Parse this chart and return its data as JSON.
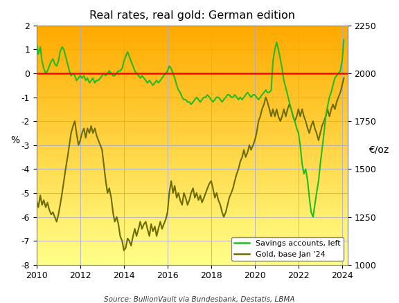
{
  "title": "Real rates, real gold: German edition",
  "source": "Source: BullionVault via Bundesbank, Destatis, LBMA",
  "ylabel_left": "%",
  "ylabel_right": "€/oz",
  "xlim": [
    2010.0,
    2024.25
  ],
  "ylim_left": [
    -8,
    2
  ],
  "ylim_right": [
    1000,
    2250
  ],
  "yticks_left": [
    -8,
    -7,
    -6,
    -5,
    -4,
    -3,
    -2,
    -1,
    0,
    1,
    2
  ],
  "yticks_right": [
    1000,
    1250,
    1500,
    1750,
    2000,
    2250
  ],
  "xticks": [
    2010,
    2012,
    2014,
    2016,
    2018,
    2020,
    2022,
    2024
  ],
  "color_savings": "#22bb22",
  "color_gold": "#6b6b00",
  "color_zero_line": "#ff0000",
  "background_top_color": "#ffaa00",
  "background_bottom_color": "#ffff88",
  "grid_color": "#aaaacc",
  "savings_data": [
    [
      2010.0,
      1.3
    ],
    [
      2010.08,
      0.8
    ],
    [
      2010.17,
      1.1
    ],
    [
      2010.25,
      0.5
    ],
    [
      2010.33,
      0.2
    ],
    [
      2010.42,
      0.0
    ],
    [
      2010.5,
      0.1
    ],
    [
      2010.58,
      0.3
    ],
    [
      2010.67,
      0.5
    ],
    [
      2010.75,
      0.6
    ],
    [
      2010.83,
      0.4
    ],
    [
      2010.92,
      0.3
    ],
    [
      2011.0,
      0.5
    ],
    [
      2011.08,
      0.9
    ],
    [
      2011.17,
      1.1
    ],
    [
      2011.25,
      1.0
    ],
    [
      2011.33,
      0.7
    ],
    [
      2011.42,
      0.4
    ],
    [
      2011.5,
      0.1
    ],
    [
      2011.58,
      -0.1
    ],
    [
      2011.67,
      0.0
    ],
    [
      2011.75,
      -0.1
    ],
    [
      2011.83,
      -0.3
    ],
    [
      2011.92,
      -0.2
    ],
    [
      2012.0,
      -0.1
    ],
    [
      2012.08,
      -0.2
    ],
    [
      2012.17,
      -0.1
    ],
    [
      2012.25,
      -0.3
    ],
    [
      2012.33,
      -0.2
    ],
    [
      2012.42,
      -0.4
    ],
    [
      2012.5,
      -0.3
    ],
    [
      2012.58,
      -0.2
    ],
    [
      2012.67,
      -0.4
    ],
    [
      2012.75,
      -0.3
    ],
    [
      2012.83,
      -0.3
    ],
    [
      2012.92,
      -0.2
    ],
    [
      2013.0,
      -0.1
    ],
    [
      2013.08,
      0.0
    ],
    [
      2013.17,
      -0.1
    ],
    [
      2013.25,
      0.0
    ],
    [
      2013.33,
      0.1
    ],
    [
      2013.42,
      0.0
    ],
    [
      2013.5,
      -0.1
    ],
    [
      2013.58,
      -0.1
    ],
    [
      2013.67,
      0.0
    ],
    [
      2013.75,
      0.1
    ],
    [
      2013.83,
      0.1
    ],
    [
      2013.92,
      0.2
    ],
    [
      2014.0,
      0.5
    ],
    [
      2014.08,
      0.7
    ],
    [
      2014.17,
      0.9
    ],
    [
      2014.25,
      0.7
    ],
    [
      2014.33,
      0.5
    ],
    [
      2014.42,
      0.3
    ],
    [
      2014.5,
      0.1
    ],
    [
      2014.58,
      0.0
    ],
    [
      2014.67,
      -0.1
    ],
    [
      2014.75,
      -0.2
    ],
    [
      2014.83,
      -0.1
    ],
    [
      2014.92,
      -0.2
    ],
    [
      2015.0,
      -0.3
    ],
    [
      2015.08,
      -0.4
    ],
    [
      2015.17,
      -0.3
    ],
    [
      2015.25,
      -0.4
    ],
    [
      2015.33,
      -0.5
    ],
    [
      2015.42,
      -0.4
    ],
    [
      2015.5,
      -0.3
    ],
    [
      2015.58,
      -0.4
    ],
    [
      2015.67,
      -0.3
    ],
    [
      2015.75,
      -0.2
    ],
    [
      2015.83,
      -0.1
    ],
    [
      2015.92,
      0.0
    ],
    [
      2016.0,
      0.1
    ],
    [
      2016.08,
      0.3
    ],
    [
      2016.17,
      0.2
    ],
    [
      2016.25,
      0.0
    ],
    [
      2016.33,
      -0.2
    ],
    [
      2016.42,
      -0.5
    ],
    [
      2016.5,
      -0.7
    ],
    [
      2016.58,
      -0.8
    ],
    [
      2016.67,
      -1.0
    ],
    [
      2016.75,
      -1.1
    ],
    [
      2016.83,
      -1.1
    ],
    [
      2016.92,
      -1.2
    ],
    [
      2017.0,
      -1.2
    ],
    [
      2017.08,
      -1.3
    ],
    [
      2017.17,
      -1.2
    ],
    [
      2017.25,
      -1.1
    ],
    [
      2017.33,
      -1.0
    ],
    [
      2017.42,
      -1.1
    ],
    [
      2017.5,
      -1.2
    ],
    [
      2017.58,
      -1.1
    ],
    [
      2017.67,
      -1.0
    ],
    [
      2017.75,
      -1.0
    ],
    [
      2017.83,
      -0.9
    ],
    [
      2017.92,
      -1.0
    ],
    [
      2018.0,
      -1.1
    ],
    [
      2018.08,
      -1.2
    ],
    [
      2018.17,
      -1.1
    ],
    [
      2018.25,
      -1.0
    ],
    [
      2018.33,
      -1.0
    ],
    [
      2018.42,
      -1.1
    ],
    [
      2018.5,
      -1.2
    ],
    [
      2018.58,
      -1.1
    ],
    [
      2018.67,
      -1.0
    ],
    [
      2018.75,
      -0.9
    ],
    [
      2018.83,
      -0.9
    ],
    [
      2018.92,
      -1.0
    ],
    [
      2019.0,
      -1.0
    ],
    [
      2019.08,
      -0.9
    ],
    [
      2019.17,
      -1.0
    ],
    [
      2019.25,
      -1.1
    ],
    [
      2019.33,
      -1.0
    ],
    [
      2019.42,
      -1.1
    ],
    [
      2019.5,
      -1.0
    ],
    [
      2019.58,
      -0.9
    ],
    [
      2019.67,
      -0.8
    ],
    [
      2019.75,
      -0.9
    ],
    [
      2019.83,
      -1.0
    ],
    [
      2019.92,
      -0.9
    ],
    [
      2020.0,
      -0.9
    ],
    [
      2020.08,
      -1.0
    ],
    [
      2020.17,
      -1.1
    ],
    [
      2020.25,
      -1.0
    ],
    [
      2020.33,
      -0.9
    ],
    [
      2020.42,
      -0.8
    ],
    [
      2020.5,
      -0.7
    ],
    [
      2020.58,
      -0.8
    ],
    [
      2020.67,
      -0.8
    ],
    [
      2020.75,
      -0.7
    ],
    [
      2020.83,
      0.5
    ],
    [
      2020.92,
      1.0
    ],
    [
      2021.0,
      1.3
    ],
    [
      2021.08,
      1.0
    ],
    [
      2021.17,
      0.6
    ],
    [
      2021.25,
      0.2
    ],
    [
      2021.33,
      -0.3
    ],
    [
      2021.42,
      -0.6
    ],
    [
      2021.5,
      -0.9
    ],
    [
      2021.58,
      -1.2
    ],
    [
      2021.67,
      -1.5
    ],
    [
      2021.75,
      -1.8
    ],
    [
      2021.83,
      -2.0
    ],
    [
      2021.92,
      -2.3
    ],
    [
      2022.0,
      -2.5
    ],
    [
      2022.08,
      -3.0
    ],
    [
      2022.17,
      -3.8
    ],
    [
      2022.25,
      -4.2
    ],
    [
      2022.33,
      -4.0
    ],
    [
      2022.42,
      -4.5
    ],
    [
      2022.5,
      -5.2
    ],
    [
      2022.58,
      -5.8
    ],
    [
      2022.67,
      -6.0
    ],
    [
      2022.75,
      -5.5
    ],
    [
      2022.83,
      -5.0
    ],
    [
      2022.92,
      -4.5
    ],
    [
      2023.0,
      -3.8
    ],
    [
      2023.08,
      -3.2
    ],
    [
      2023.17,
      -2.5
    ],
    [
      2023.25,
      -1.8
    ],
    [
      2023.33,
      -1.4
    ],
    [
      2023.42,
      -1.0
    ],
    [
      2023.5,
      -0.8
    ],
    [
      2023.58,
      -0.5
    ],
    [
      2023.67,
      -0.2
    ],
    [
      2023.75,
      -0.1
    ],
    [
      2023.83,
      0.0
    ],
    [
      2023.92,
      0.1
    ],
    [
      2024.0,
      0.5
    ],
    [
      2024.08,
      1.4
    ]
  ],
  "gold_data": [
    [
      2010.0,
      -5.3
    ],
    [
      2010.08,
      -5.6
    ],
    [
      2010.17,
      -5.1
    ],
    [
      2010.25,
      -5.5
    ],
    [
      2010.33,
      -5.3
    ],
    [
      2010.42,
      -5.6
    ],
    [
      2010.5,
      -5.4
    ],
    [
      2010.58,
      -5.7
    ],
    [
      2010.67,
      -5.9
    ],
    [
      2010.75,
      -5.8
    ],
    [
      2010.83,
      -6.0
    ],
    [
      2010.92,
      -6.2
    ],
    [
      2011.0,
      -5.9
    ],
    [
      2011.08,
      -5.5
    ],
    [
      2011.17,
      -5.0
    ],
    [
      2011.25,
      -4.5
    ],
    [
      2011.33,
      -4.0
    ],
    [
      2011.42,
      -3.5
    ],
    [
      2011.5,
      -3.0
    ],
    [
      2011.58,
      -2.5
    ],
    [
      2011.67,
      -2.2
    ],
    [
      2011.75,
      -2.0
    ],
    [
      2011.83,
      -2.5
    ],
    [
      2011.92,
      -3.0
    ],
    [
      2012.0,
      -2.8
    ],
    [
      2012.08,
      -2.5
    ],
    [
      2012.17,
      -2.3
    ],
    [
      2012.25,
      -2.7
    ],
    [
      2012.33,
      -2.3
    ],
    [
      2012.42,
      -2.5
    ],
    [
      2012.5,
      -2.2
    ],
    [
      2012.58,
      -2.5
    ],
    [
      2012.67,
      -2.3
    ],
    [
      2012.75,
      -2.6
    ],
    [
      2012.83,
      -2.8
    ],
    [
      2012.92,
      -3.0
    ],
    [
      2013.0,
      -3.2
    ],
    [
      2013.08,
      -3.8
    ],
    [
      2013.17,
      -4.5
    ],
    [
      2013.25,
      -5.0
    ],
    [
      2013.33,
      -4.8
    ],
    [
      2013.42,
      -5.2
    ],
    [
      2013.5,
      -5.8
    ],
    [
      2013.58,
      -6.2
    ],
    [
      2013.67,
      -6.0
    ],
    [
      2013.75,
      -6.3
    ],
    [
      2013.83,
      -6.8
    ],
    [
      2013.92,
      -7.0
    ],
    [
      2014.0,
      -7.4
    ],
    [
      2014.08,
      -7.3
    ],
    [
      2014.17,
      -6.9
    ],
    [
      2014.25,
      -7.0
    ],
    [
      2014.33,
      -7.2
    ],
    [
      2014.42,
      -6.8
    ],
    [
      2014.5,
      -6.5
    ],
    [
      2014.58,
      -6.8
    ],
    [
      2014.67,
      -6.5
    ],
    [
      2014.75,
      -6.2
    ],
    [
      2014.83,
      -6.5
    ],
    [
      2014.92,
      -6.3
    ],
    [
      2015.0,
      -6.2
    ],
    [
      2015.08,
      -6.5
    ],
    [
      2015.17,
      -6.8
    ],
    [
      2015.25,
      -6.3
    ],
    [
      2015.33,
      -6.6
    ],
    [
      2015.42,
      -6.4
    ],
    [
      2015.5,
      -6.8
    ],
    [
      2015.58,
      -6.5
    ],
    [
      2015.67,
      -6.2
    ],
    [
      2015.75,
      -6.5
    ],
    [
      2015.83,
      -6.3
    ],
    [
      2015.92,
      -6.1
    ],
    [
      2016.0,
      -5.8
    ],
    [
      2016.08,
      -5.0
    ],
    [
      2016.17,
      -4.5
    ],
    [
      2016.25,
      -5.0
    ],
    [
      2016.33,
      -4.7
    ],
    [
      2016.42,
      -5.2
    ],
    [
      2016.5,
      -5.0
    ],
    [
      2016.58,
      -5.3
    ],
    [
      2016.67,
      -5.5
    ],
    [
      2016.75,
      -5.0
    ],
    [
      2016.83,
      -5.2
    ],
    [
      2016.92,
      -5.5
    ],
    [
      2017.0,
      -5.3
    ],
    [
      2017.08,
      -5.0
    ],
    [
      2017.17,
      -4.8
    ],
    [
      2017.25,
      -5.2
    ],
    [
      2017.33,
      -5.0
    ],
    [
      2017.42,
      -5.3
    ],
    [
      2017.5,
      -5.1
    ],
    [
      2017.58,
      -5.4
    ],
    [
      2017.67,
      -5.2
    ],
    [
      2017.75,
      -5.0
    ],
    [
      2017.83,
      -4.8
    ],
    [
      2017.92,
      -4.6
    ],
    [
      2018.0,
      -4.5
    ],
    [
      2018.08,
      -4.8
    ],
    [
      2018.17,
      -5.2
    ],
    [
      2018.25,
      -5.0
    ],
    [
      2018.33,
      -5.3
    ],
    [
      2018.42,
      -5.5
    ],
    [
      2018.5,
      -5.8
    ],
    [
      2018.58,
      -6.0
    ],
    [
      2018.67,
      -5.8
    ],
    [
      2018.75,
      -5.5
    ],
    [
      2018.83,
      -5.2
    ],
    [
      2018.92,
      -5.0
    ],
    [
      2019.0,
      -4.8
    ],
    [
      2019.08,
      -4.5
    ],
    [
      2019.17,
      -4.2
    ],
    [
      2019.25,
      -4.0
    ],
    [
      2019.33,
      -3.7
    ],
    [
      2019.42,
      -3.5
    ],
    [
      2019.5,
      -3.2
    ],
    [
      2019.58,
      -3.5
    ],
    [
      2019.67,
      -3.3
    ],
    [
      2019.75,
      -3.0
    ],
    [
      2019.83,
      -3.2
    ],
    [
      2019.92,
      -3.0
    ],
    [
      2020.0,
      -2.8
    ],
    [
      2020.08,
      -2.5
    ],
    [
      2020.17,
      -2.0
    ],
    [
      2020.25,
      -1.8
    ],
    [
      2020.33,
      -1.5
    ],
    [
      2020.42,
      -1.3
    ],
    [
      2020.5,
      -1.0
    ],
    [
      2020.58,
      -1.2
    ],
    [
      2020.67,
      -1.5
    ],
    [
      2020.75,
      -1.8
    ],
    [
      2020.83,
      -1.5
    ],
    [
      2020.92,
      -1.8
    ],
    [
      2021.0,
      -1.5
    ],
    [
      2021.08,
      -1.8
    ],
    [
      2021.17,
      -2.0
    ],
    [
      2021.25,
      -1.8
    ],
    [
      2021.33,
      -1.5
    ],
    [
      2021.42,
      -1.8
    ],
    [
      2021.5,
      -1.5
    ],
    [
      2021.58,
      -1.3
    ],
    [
      2021.67,
      -1.5
    ],
    [
      2021.75,
      -1.8
    ],
    [
      2021.83,
      -2.0
    ],
    [
      2021.92,
      -1.8
    ],
    [
      2022.0,
      -1.5
    ],
    [
      2022.08,
      -1.8
    ],
    [
      2022.17,
      -1.5
    ],
    [
      2022.25,
      -1.8
    ],
    [
      2022.33,
      -2.0
    ],
    [
      2022.42,
      -2.3
    ],
    [
      2022.5,
      -2.5
    ],
    [
      2022.58,
      -2.2
    ],
    [
      2022.67,
      -2.0
    ],
    [
      2022.75,
      -2.3
    ],
    [
      2022.83,
      -2.5
    ],
    [
      2022.92,
      -2.8
    ],
    [
      2023.0,
      -2.5
    ],
    [
      2023.08,
      -2.2
    ],
    [
      2023.17,
      -2.0
    ],
    [
      2023.25,
      -1.8
    ],
    [
      2023.33,
      -1.5
    ],
    [
      2023.42,
      -1.8
    ],
    [
      2023.5,
      -1.5
    ],
    [
      2023.58,
      -1.3
    ],
    [
      2023.67,
      -1.5
    ],
    [
      2023.75,
      -1.2
    ],
    [
      2023.83,
      -1.0
    ],
    [
      2023.92,
      -0.8
    ],
    [
      2024.0,
      -0.5
    ],
    [
      2024.08,
      -0.2
    ]
  ]
}
